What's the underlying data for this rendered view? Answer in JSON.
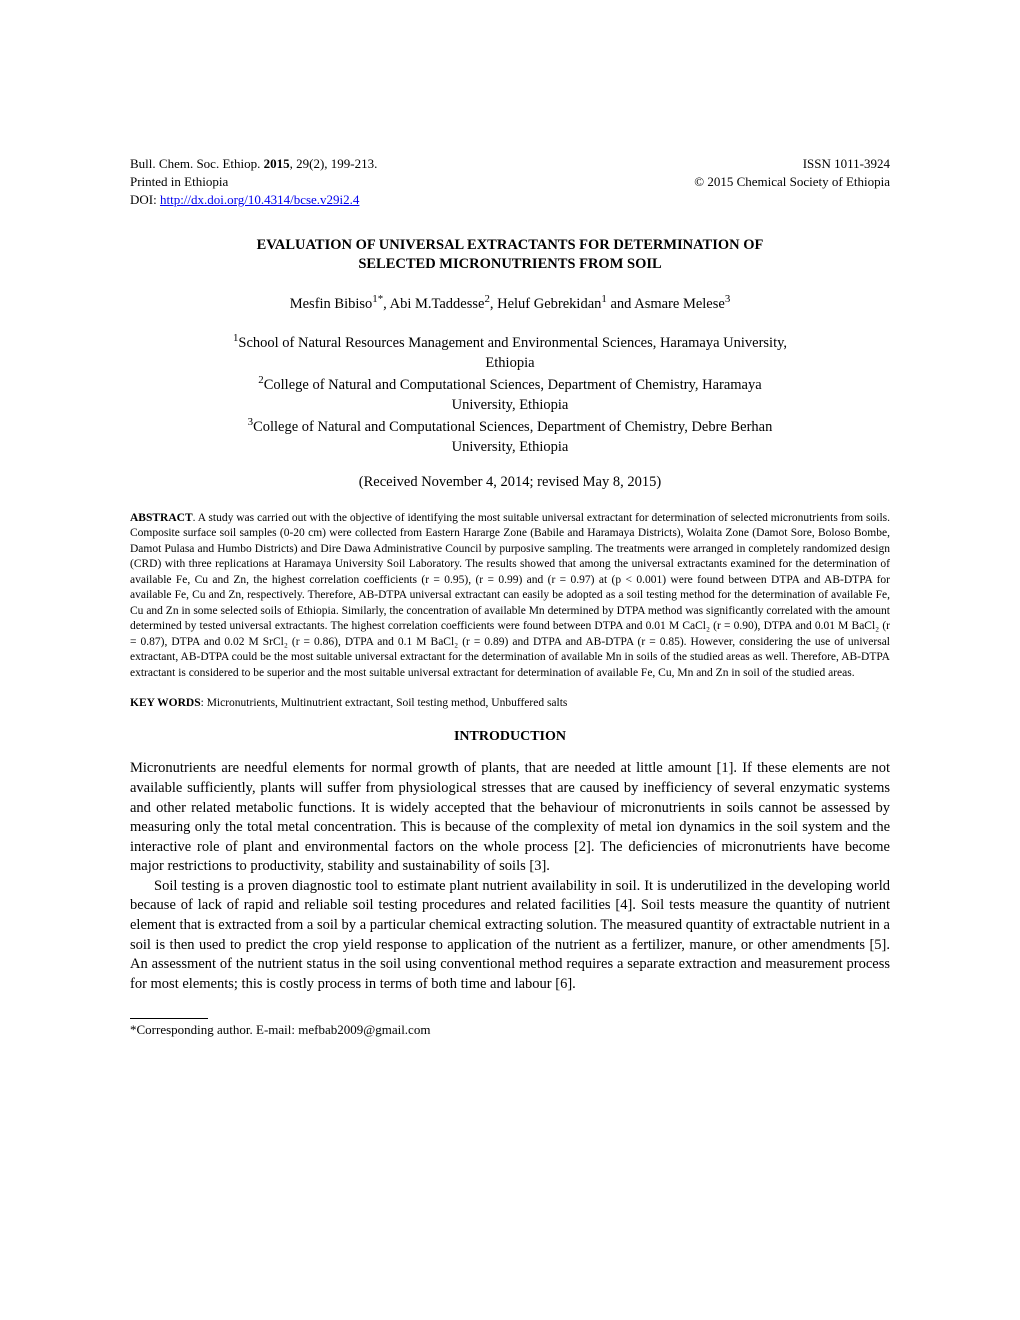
{
  "header": {
    "journal_line": "Bull. Chem. Soc. Ethiop. ",
    "journal_bold": "2015",
    "journal_rest": ", 29(2), 199-213.",
    "printed": "Printed in Ethiopia",
    "doi_label": "DOI: ",
    "doi_link": "http://dx.doi.org/10.4314/bcse.v29i2.4",
    "issn": "ISSN 1011-3924",
    "copyright": "© 2015 Chemical Society of Ethiopia"
  },
  "title": {
    "line1": "EVALUATION OF UNIVERSAL EXTRACTANTS FOR DETERMINATION OF",
    "line2": "SELECTED MICRONUTRIENTS FROM SOIL"
  },
  "authors": {
    "a1_name": "Mesfin Bibiso",
    "a1_sup": "1*",
    "a2_name": ", Abi M.Taddesse",
    "a2_sup": "2",
    "a3_name": ", Heluf Gebrekidan",
    "a3_sup": "1",
    "a4_name": " and Asmare Melese",
    "a4_sup": "3"
  },
  "affiliations": {
    "sup1": "1",
    "aff1a": "School of Natural Resources Management and Environmental Sciences, Haramaya University,",
    "aff1b": "Ethiopia",
    "sup2": "2",
    "aff2a": "College of Natural and Computational Sciences, Department of Chemistry, Haramaya",
    "aff2b": "University, Ethiopia",
    "sup3": "3",
    "aff3a": "College of Natural and Computational Sciences, Department of Chemistry, Debre Berhan",
    "aff3b": "University, Ethiopia"
  },
  "received": "(Received November 4, 2014; revised May 8, 2015)",
  "abstract": {
    "label": "ABSTRACT",
    "text": ". A study was carried out with the objective of identifying the most suitable universal extractant for determination of selected micronutrients from soils. Composite surface soil samples (0-20 cm) were collected from Eastern Hararge Zone (Babile and Haramaya Districts), Wolaita Zone (Damot Sore, Boloso Bombe, Damot Pulasa and Humbo Districts) and Dire Dawa Administrative Council by purposive sampling. The treatments were arranged in completely randomized design (CRD) with three replications at Haramaya University Soil Laboratory. The results showed that among the universal extractants examined for the determination of available Fe, Cu and Zn, the highest correlation coefficients (r = 0.95), (r = 0.99) and (r = 0.97) at (p < 0.001) were found between DTPA and AB-DTPA for available Fe, Cu and Zn, respectively. Therefore, AB-DTPA universal extractant can easily be adopted as a soil testing method for the determination of available Fe, Cu and Zn in some selected soils of Ethiopia. Similarly, the concentration of available Mn determined by DTPA method was significantly correlated with the amount determined by tested universal extractants. The highest correlation coefficients were found between DTPA and 0.01 M CaCl₂ (r = 0.90), DTPA and 0.01 M BaCl₂ (r = 0.87), DTPA and 0.02 M SrCl₂ (r = 0.86), DTPA and 0.1 M BaCl₂ (r = 0.89) and DTPA and AB-DTPA (r = 0.85). However, considering the use of universal extractant, AB-DTPA could be the most suitable universal extractant for the determination of available Mn in soils of the studied areas as well. Therefore, AB-DTPA extractant is considered to be superior and the most suitable universal extractant for determination of available Fe, Cu, Mn and Zn in soil of the studied areas."
  },
  "keywords": {
    "label": "KEY WORDS",
    "text": ": Micronutrients, Multinutrient extractant, Soil testing method, Unbuffered salts"
  },
  "introduction": {
    "heading": "INTRODUCTION",
    "para1": "Micronutrients are needful elements for normal growth of plants, that are needed at little amount [1]. If these elements are not available sufficiently, plants will suffer from physiological stresses that are caused by inefficiency of several enzymatic systems and other related metabolic functions. It is widely accepted that the behaviour of micronutrients in soils cannot be assessed by measuring only the total metal concentration. This is because of the complexity of metal ion dynamics in the soil system and the interactive role of plant and environmental factors on the whole process [2]. The deficiencies of micronutrients have become major restrictions to productivity, stability and sustainability of soils [3].",
    "para2": "Soil testing is a proven diagnostic tool to estimate plant nutrient availability in soil. It is underutilized in the developing world because of lack of rapid and reliable soil testing procedures and related facilities [4]. Soil tests measure the quantity of nutrient element that is extracted from a soil by a particular chemical extracting solution. The measured quantity of extractable nutrient in a soil is then used to predict the crop yield response to application of the nutrient as a fertilizer, manure, or other amendments [5]. An assessment of the nutrient status in the soil using conventional method requires a separate extraction and measurement process for most elements; this is costly process in terms of both time and labour [6]."
  },
  "corresponding": "*Corresponding author. E-mail: mefbab2009@gmail.com"
}
